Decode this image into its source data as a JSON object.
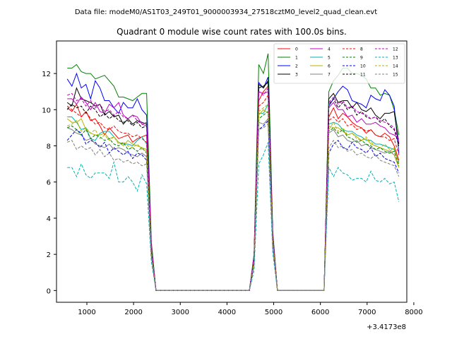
{
  "chart_data": {
    "type": "line",
    "suptitle": "Data file: modeM0/AS1T03_249T01_9000003934_27518cztM0_level2_quad_clean.evt",
    "title": "Quadrant 0 module wise count rates with 100.0s bins.",
    "xlabel": "",
    "ylabel": "",
    "x_offset_label": "+3.4173e8",
    "xlim": [
      350,
      7850
    ],
    "ylim": [
      -0.65,
      13.8
    ],
    "xticks": [
      1000,
      2000,
      3000,
      4000,
      5000,
      6000,
      7000,
      8000
    ],
    "yticks": [
      0,
      2,
      4,
      6,
      8,
      10,
      12
    ],
    "x": [
      580,
      680,
      780,
      880,
      980,
      1080,
      1180,
      1280,
      1380,
      1480,
      1580,
      1680,
      1780,
      1880,
      1980,
      2080,
      2180,
      2280,
      2380,
      2480,
      4480,
      4580,
      4680,
      4780,
      4880,
      4980,
      5080,
      6080,
      6180,
      6280,
      6380,
      6480,
      6580,
      6680,
      6780,
      6880,
      6980,
      7080,
      7180,
      7280,
      7380,
      7480,
      7580,
      7680
    ],
    "series": [
      {
        "name": "0",
        "color": "#ff0000",
        "dash": "solid",
        "values": [
          10.1,
          9.9,
          10.3,
          9.6,
          9.9,
          9.4,
          9.5,
          9.1,
          8.6,
          9.0,
          8.7,
          8.4,
          8.5,
          8.6,
          8.2,
          8.4,
          8.5,
          8.6,
          2.3,
          0,
          0,
          1.7,
          10.5,
          11.0,
          11.3,
          3.0,
          0,
          0,
          9.6,
          10.1,
          9.5,
          9.8,
          9.6,
          9.3,
          9.1,
          9.0,
          8.7,
          8.9,
          8.6,
          8.5,
          8.7,
          8.5,
          8.0,
          7.2
        ]
      },
      {
        "name": "1",
        "color": "#008000",
        "dash": "solid",
        "values": [
          12.3,
          12.3,
          12.5,
          12.1,
          12.0,
          12.0,
          11.7,
          11.8,
          11.9,
          11.6,
          11.3,
          10.7,
          10.7,
          10.6,
          10.5,
          10.7,
          10.9,
          10.9,
          2.7,
          0,
          0,
          2.0,
          12.5,
          12.0,
          13.1,
          3.3,
          0,
          0,
          11.0,
          11.6,
          11.9,
          12.3,
          12.3,
          12.0,
          12.0,
          11.9,
          11.7,
          11.2,
          11.2,
          10.8,
          10.9,
          10.8,
          10.0,
          8.6
        ]
      },
      {
        "name": "2",
        "color": "#0000ff",
        "dash": "solid",
        "values": [
          11.7,
          11.3,
          12.0,
          11.2,
          11.4,
          10.6,
          11.6,
          11.2,
          10.5,
          10.5,
          10.1,
          9.8,
          10.4,
          10.1,
          10.1,
          10.6,
          10.0,
          9.7,
          2.5,
          0,
          0,
          1.9,
          11.5,
          11.2,
          11.8,
          3.1,
          0,
          0,
          10.2,
          10.6,
          11.0,
          11.3,
          11.1,
          10.5,
          10.4,
          10.3,
          10.1,
          10.8,
          10.6,
          10.5,
          11.1,
          10.8,
          10.2,
          7.6
        ]
      },
      {
        "name": "3",
        "color": "#000000",
        "dash": "solid",
        "values": [
          10.4,
          10.2,
          11.2,
          10.6,
          10.5,
          10.4,
          10.2,
          10.3,
          9.7,
          9.9,
          9.6,
          9.7,
          9.2,
          9.5,
          9.2,
          9.4,
          9.3,
          9.2,
          2.4,
          0,
          0,
          1.8,
          11.4,
          11.2,
          11.6,
          3.1,
          0,
          0,
          10.6,
          10.9,
          10.4,
          10.5,
          10.5,
          10.1,
          10.4,
          10.0,
          9.9,
          10.1,
          9.7,
          9.5,
          9.8,
          9.8,
          9.9,
          8.1
        ]
      },
      {
        "name": "4",
        "color": "#c000c0",
        "dash": "solid",
        "values": [
          10.6,
          10.6,
          10.3,
          10.7,
          10.4,
          10.0,
          10.4,
          9.9,
          9.8,
          10.3,
          10.1,
          10.4,
          9.7,
          9.5,
          9.7,
          9.6,
          9.2,
          9.1,
          2.4,
          0,
          0,
          1.8,
          11.0,
          10.9,
          11.0,
          3.0,
          0,
          0,
          10.1,
          10.4,
          10.0,
          10.0,
          9.6,
          9.7,
          9.3,
          9.5,
          9.2,
          9.2,
          9.3,
          9.1,
          9.0,
          8.7,
          8.6,
          8.4
        ]
      },
      {
        "name": "5",
        "color": "#00b3b3",
        "dash": "solid",
        "values": [
          9.6,
          9.6,
          9.3,
          8.9,
          9.0,
          8.4,
          8.3,
          8.7,
          8.8,
          8.8,
          8.5,
          8.2,
          8.1,
          8.1,
          8.0,
          8.3,
          8.5,
          8.1,
          2.2,
          0,
          0,
          1.7,
          9.8,
          9.8,
          10.3,
          2.8,
          0,
          0,
          9.2,
          9.3,
          9.2,
          8.9,
          8.8,
          8.8,
          8.6,
          8.5,
          8.3,
          8.3,
          8.1,
          8.1,
          8.0,
          7.9,
          7.8,
          7.1
        ]
      },
      {
        "name": "6",
        "color": "#b3b300",
        "dash": "solid",
        "values": [
          9.5,
          9.3,
          9.3,
          9.5,
          8.9,
          8.7,
          8.6,
          8.6,
          8.7,
          8.4,
          8.5,
          8.2,
          8.0,
          8.3,
          8.1,
          8.0,
          7.9,
          7.8,
          2.1,
          0,
          0,
          1.6,
          9.7,
          10.0,
          9.8,
          2.8,
          0,
          0,
          9.1,
          9.0,
          9.0,
          8.8,
          8.6,
          8.7,
          8.5,
          8.3,
          8.4,
          8.1,
          8.0,
          7.9,
          7.8,
          7.7,
          7.9,
          7.0
        ]
      },
      {
        "name": "7",
        "color": "#808080",
        "dash": "solid",
        "values": [
          9.0,
          8.9,
          8.7,
          8.6,
          8.3,
          8.4,
          8.1,
          8.0,
          7.9,
          8.1,
          7.8,
          7.9,
          7.8,
          7.6,
          7.5,
          7.4,
          7.6,
          7.4,
          2.0,
          0,
          0,
          1.5,
          9.3,
          9.2,
          9.5,
          2.6,
          0,
          0,
          8.7,
          8.9,
          8.5,
          8.6,
          8.3,
          8.2,
          8.3,
          8.0,
          8.1,
          7.9,
          7.8,
          7.7,
          7.6,
          7.7,
          7.5,
          6.8
        ]
      },
      {
        "name": "8",
        "color": "#ff0000",
        "dash": "dashed",
        "values": [
          10.2,
          10.0,
          9.8,
          9.6,
          9.9,
          9.5,
          9.2,
          9.3,
          9.0,
          8.9,
          9.1,
          8.8,
          8.7,
          8.7,
          8.5,
          8.6,
          8.4,
          8.2,
          2.2,
          0,
          0,
          1.7,
          10.2,
          10.4,
          10.8,
          2.9,
          0,
          0,
          9.4,
          9.6,
          9.3,
          9.5,
          9.1,
          9.2,
          8.9,
          9.0,
          8.8,
          8.9,
          8.6,
          8.5,
          8.5,
          8.3,
          8.4,
          7.5
        ]
      },
      {
        "name": "9",
        "color": "#008000",
        "dash": "dashed",
        "values": [
          9.0,
          9.1,
          8.9,
          8.6,
          8.9,
          8.4,
          8.6,
          8.5,
          8.3,
          8.4,
          8.1,
          8.0,
          8.2,
          7.8,
          7.9,
          7.7,
          7.9,
          7.6,
          2.0,
          0,
          0,
          1.5,
          9.5,
          9.7,
          9.9,
          2.7,
          0,
          0,
          8.8,
          9.0,
          8.7,
          8.9,
          8.5,
          8.4,
          8.2,
          8.3,
          8.1,
          8.0,
          7.8,
          7.9,
          7.7,
          7.6,
          7.7,
          6.9
        ]
      },
      {
        "name": "10",
        "color": "#0000ff",
        "dash": "dashed",
        "values": [
          8.3,
          8.6,
          8.9,
          8.7,
          8.1,
          8.3,
          8.2,
          7.9,
          8.2,
          7.6,
          7.9,
          7.7,
          7.5,
          7.7,
          7.3,
          7.6,
          7.5,
          7.2,
          1.9,
          0,
          0,
          1.4,
          8.9,
          9.1,
          9.4,
          2.5,
          0,
          0,
          7.6,
          8.1,
          8.3,
          7.9,
          7.8,
          8.2,
          7.9,
          7.8,
          7.6,
          7.9,
          7.4,
          7.6,
          7.3,
          7.2,
          7.1,
          6.5
        ]
      },
      {
        "name": "11",
        "color": "#000000",
        "dash": "dashed",
        "values": [
          10.0,
          10.3,
          10.1,
          10.2,
          9.8,
          10.2,
          10.0,
          9.6,
          9.8,
          9.5,
          9.7,
          9.4,
          9.3,
          9.4,
          9.1,
          9.3,
          9.0,
          9.1,
          2.4,
          0,
          0,
          1.8,
          11.2,
          11.3,
          11.5,
          3.1,
          0,
          0,
          10.3,
          10.6,
          10.1,
          10.4,
          10.0,
          10.2,
          9.7,
          9.9,
          9.6,
          9.5,
          9.6,
          9.3,
          9.5,
          9.1,
          8.9,
          8.0
        ]
      },
      {
        "name": "12",
        "color": "#c000c0",
        "dash": "dashed",
        "values": [
          10.8,
          10.9,
          10.5,
          10.6,
          10.2,
          10.5,
          10.1,
          10.3,
          9.9,
          10.0,
          9.7,
          9.9,
          9.6,
          9.5,
          9.7,
          9.4,
          9.2,
          9.3,
          2.5,
          0,
          0,
          1.9,
          11.0,
          10.8,
          11.2,
          3.1,
          0,
          0,
          10.4,
          10.7,
          10.3,
          10.5,
          10.1,
          10.2,
          9.9,
          9.8,
          9.7,
          9.5,
          9.6,
          9.4,
          9.3,
          9.2,
          9.0,
          8.2
        ]
      },
      {
        "name": "13",
        "color": "#00b3b3",
        "dash": "dashed",
        "values": [
          6.8,
          6.8,
          6.3,
          7.0,
          6.4,
          6.2,
          6.5,
          6.5,
          6.5,
          6.2,
          7.1,
          6.0,
          6.0,
          6.3,
          6.0,
          5.5,
          6.4,
          5.9,
          1.6,
          0,
          0,
          1.1,
          7.0,
          7.5,
          8.2,
          2.1,
          0,
          0,
          6.8,
          6.3,
          6.8,
          6.5,
          6.4,
          6.1,
          6.2,
          6.2,
          6.0,
          6.6,
          6.1,
          6.0,
          6.2,
          5.9,
          6.0,
          4.9
        ]
      },
      {
        "name": "14",
        "color": "#b3b300",
        "dash": "dashed",
        "values": [
          9.1,
          9.2,
          9.4,
          8.8,
          9.0,
          8.7,
          8.9,
          8.4,
          8.6,
          8.3,
          8.5,
          8.1,
          8.2,
          8.0,
          7.9,
          8.1,
          7.8,
          7.7,
          2.1,
          0,
          0,
          1.6,
          9.9,
          10.1,
          10.3,
          2.8,
          0,
          0,
          8.9,
          9.3,
          8.8,
          9.0,
          8.6,
          8.7,
          8.4,
          8.3,
          8.5,
          8.2,
          8.0,
          7.9,
          8.1,
          7.8,
          7.5,
          6.8
        ]
      },
      {
        "name": "15",
        "color": "#808080",
        "dash": "dashed",
        "values": [
          8.2,
          8.3,
          7.8,
          8.0,
          7.8,
          7.9,
          7.5,
          7.8,
          7.4,
          7.6,
          7.2,
          7.3,
          7.1,
          7.2,
          7.0,
          7.1,
          6.9,
          7.0,
          1.9,
          0,
          0,
          1.4,
          8.9,
          9.0,
          9.2,
          2.5,
          0,
          0,
          7.9,
          8.3,
          7.9,
          8.0,
          7.7,
          7.8,
          7.5,
          7.6,
          7.4,
          7.3,
          7.5,
          7.2,
          7.1,
          7.0,
          6.9,
          6.3
        ]
      }
    ]
  }
}
